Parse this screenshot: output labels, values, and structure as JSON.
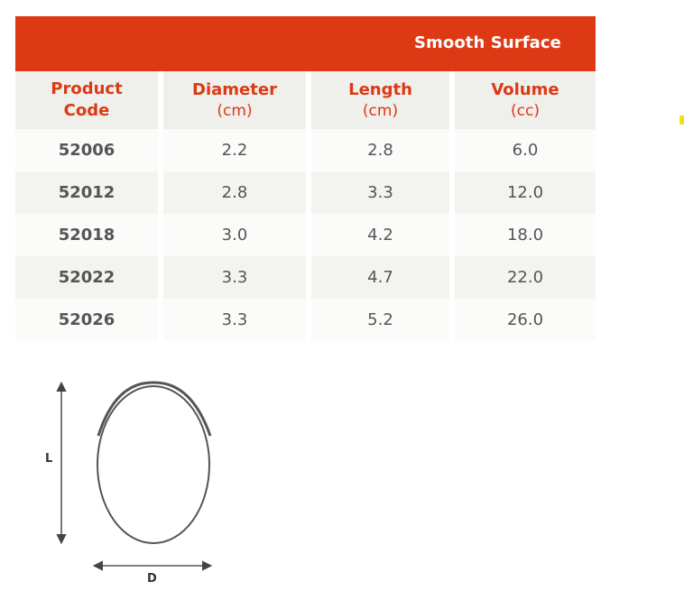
{
  "table": {
    "banner_title": "Smooth Surface",
    "columns": [
      {
        "title": "Product",
        "title2": "Code",
        "unit": ""
      },
      {
        "title": "Diameter",
        "title2": "",
        "unit": "(cm)"
      },
      {
        "title": "Length",
        "title2": "",
        "unit": "(cm)"
      },
      {
        "title": "Volume",
        "title2": "",
        "unit": "(cc)"
      }
    ],
    "rows": [
      {
        "code": "52006",
        "diameter": "2.2",
        "length": "2.8",
        "volume": "6.0"
      },
      {
        "code": "52012",
        "diameter": "2.8",
        "length": "3.3",
        "volume": "12.0"
      },
      {
        "code": "52018",
        "diameter": "3.0",
        "length": "4.2",
        "volume": "18.0"
      },
      {
        "code": "52022",
        "diameter": "3.3",
        "length": "4.7",
        "volume": "22.0"
      },
      {
        "code": "52026",
        "diameter": "3.3",
        "length": "5.2",
        "volume": "26.0"
      }
    ]
  },
  "diagram": {
    "length_label": "L",
    "diameter_label": "D"
  },
  "colors": {
    "accent": "#dc3914",
    "header_bg": "#efefeb",
    "text": "#555555"
  }
}
